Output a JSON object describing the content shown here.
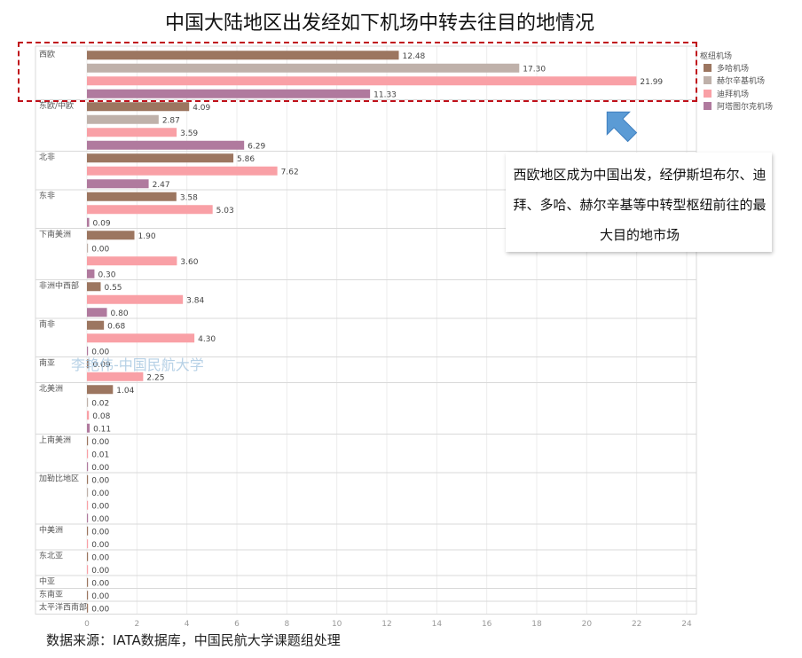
{
  "title": "中国大陆地区出发经如下机场中转去往目的地情况",
  "source": "数据来源：IATA数据库，中国民航大学课题组处理",
  "watermark": "李艳伟-中国民航大学",
  "callout": "西欧地区成为中国出发，经伊斯坦布尔、迪拜、多哈、赫尔辛基等中转型枢纽前往的最大目的地市场",
  "colors": {
    "doha": "#9c7660",
    "helsinki": "#bfb1aa",
    "dubai": "#f9a0a6",
    "istanbul": "#b07a9e",
    "highlight": "#c0101a",
    "arrow": "#5b9bd5"
  },
  "chart_data": {
    "type": "bar",
    "orientation": "horizontal",
    "legend_title": "枢纽机场",
    "legend_position": "right",
    "xlim": [
      0,
      24
    ],
    "xticks": [
      0,
      2,
      4,
      6,
      8,
      10,
      12,
      14,
      16,
      18,
      20,
      22,
      24
    ],
    "grid": true,
    "series_meta": [
      {
        "key": "doha",
        "name": "多哈机场",
        "color": "#9c7660"
      },
      {
        "key": "helsinki",
        "name": "赫尔辛基机场",
        "color": "#bfb1aa"
      },
      {
        "key": "dubai",
        "name": "迪拜机场",
        "color": "#f9a0a6"
      },
      {
        "key": "istanbul",
        "name": "阿塔图尔克机场",
        "color": "#b07a9e"
      }
    ],
    "groups": [
      {
        "region": "西欧",
        "bars": [
          {
            "s": "doha",
            "v": 12.48
          },
          {
            "s": "helsinki",
            "v": 17.3
          },
          {
            "s": "dubai",
            "v": 21.99
          },
          {
            "s": "istanbul",
            "v": 11.33
          }
        ]
      },
      {
        "region": "东欧/中欧",
        "bars": [
          {
            "s": "doha",
            "v": 4.09
          },
          {
            "s": "helsinki",
            "v": 2.87
          },
          {
            "s": "dubai",
            "v": 3.59
          },
          {
            "s": "istanbul",
            "v": 6.29
          }
        ]
      },
      {
        "region": "北非",
        "bars": [
          {
            "s": "doha",
            "v": 5.86
          },
          {
            "s": "dubai",
            "v": 7.62
          },
          {
            "s": "istanbul",
            "v": 2.47
          }
        ]
      },
      {
        "region": "东非",
        "bars": [
          {
            "s": "doha",
            "v": 3.58
          },
          {
            "s": "dubai",
            "v": 5.03
          },
          {
            "s": "istanbul",
            "v": 0.09
          }
        ]
      },
      {
        "region": "下南美洲",
        "bars": [
          {
            "s": "doha",
            "v": 1.9
          },
          {
            "s": "helsinki",
            "v": 0.0
          },
          {
            "s": "dubai",
            "v": 3.6
          },
          {
            "s": "istanbul",
            "v": 0.3
          }
        ]
      },
      {
        "region": "非洲中西部",
        "bars": [
          {
            "s": "doha",
            "v": 0.55
          },
          {
            "s": "dubai",
            "v": 3.84
          },
          {
            "s": "istanbul",
            "v": 0.8
          }
        ]
      },
      {
        "region": "南非",
        "bars": [
          {
            "s": "doha",
            "v": 0.68
          },
          {
            "s": "dubai",
            "v": 4.3
          },
          {
            "s": "istanbul",
            "v": 0.0
          }
        ]
      },
      {
        "region": "南亚",
        "bars": [
          {
            "s": "doha",
            "v": 0.09
          },
          {
            "s": "dubai",
            "v": 2.25
          }
        ]
      },
      {
        "region": "北美洲",
        "bars": [
          {
            "s": "doha",
            "v": 1.04
          },
          {
            "s": "helsinki",
            "v": 0.02
          },
          {
            "s": "dubai",
            "v": 0.08
          },
          {
            "s": "istanbul",
            "v": 0.11
          }
        ]
      },
      {
        "region": "上南美洲",
        "bars": [
          {
            "s": "doha",
            "v": 0.0
          },
          {
            "s": "dubai",
            "v": 0.01
          },
          {
            "s": "istanbul",
            "v": 0.0
          }
        ]
      },
      {
        "region": "加勒比地区",
        "bars": [
          {
            "s": "doha",
            "v": 0.0
          },
          {
            "s": "helsinki",
            "v": 0.0
          },
          {
            "s": "dubai",
            "v": 0.0
          },
          {
            "s": "istanbul",
            "v": 0.0
          }
        ]
      },
      {
        "region": "中美洲",
        "bars": [
          {
            "s": "doha",
            "v": 0.0
          },
          {
            "s": "dubai",
            "v": 0.0
          }
        ]
      },
      {
        "region": "东北亚",
        "bars": [
          {
            "s": "doha",
            "v": 0.0
          },
          {
            "s": "dubai",
            "v": 0.0
          }
        ]
      },
      {
        "region": "中亚",
        "bars": [
          {
            "s": "doha",
            "v": 0.0
          }
        ]
      },
      {
        "region": "东南亚",
        "bars": [
          {
            "s": "doha",
            "v": 0.0
          }
        ]
      },
      {
        "region": "太平洋西南部",
        "bars": [
          {
            "s": "doha",
            "v": 0.0
          }
        ]
      }
    ]
  }
}
